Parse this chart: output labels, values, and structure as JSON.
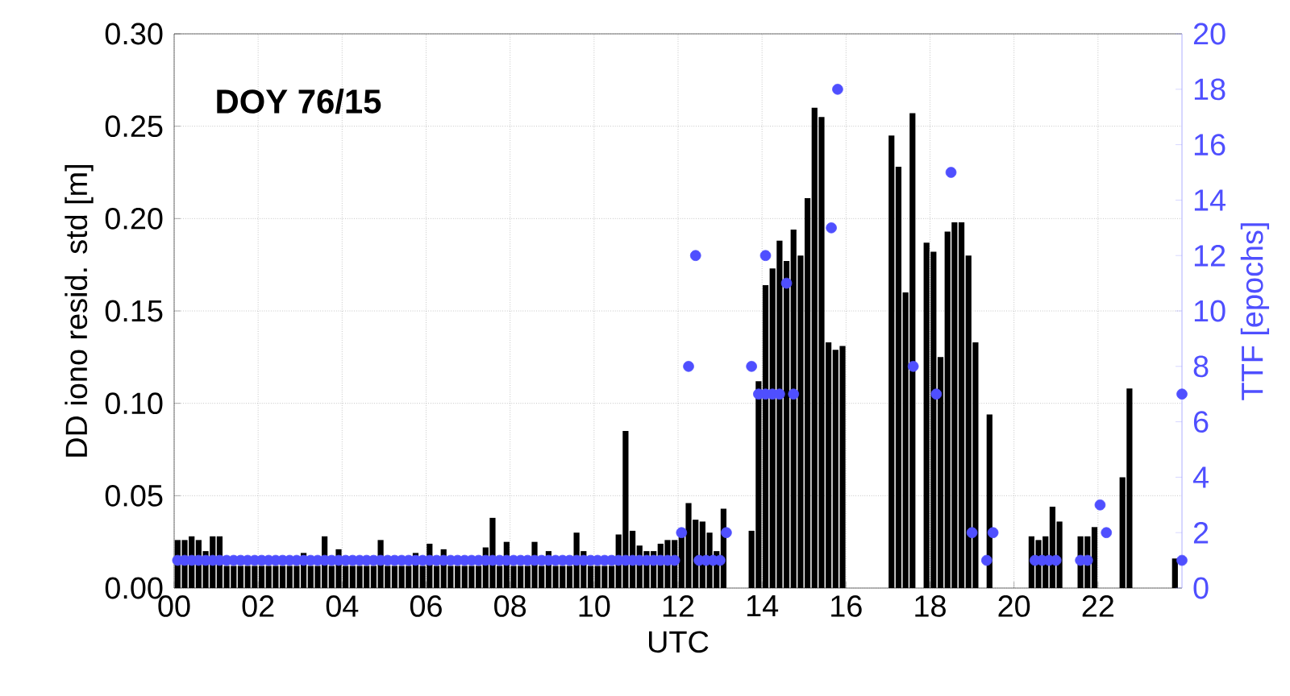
{
  "chart_data": {
    "type": "bar",
    "xlabel": "UTC",
    "ylabel": "DD iono resid. std [m]",
    "y2label": "TTF [epochs]",
    "annotations": [
      "DOY 76/15"
    ],
    "xlim": [
      0,
      24
    ],
    "xticks": [
      {
        "value": 0,
        "label": "00"
      },
      {
        "value": 2,
        "label": "02"
      },
      {
        "value": 4,
        "label": "04"
      },
      {
        "value": 6,
        "label": "06"
      },
      {
        "value": 8,
        "label": "08"
      },
      {
        "value": 10,
        "label": "10"
      },
      {
        "value": 12,
        "label": "12"
      },
      {
        "value": 14,
        "label": "14"
      },
      {
        "value": 16,
        "label": "16"
      },
      {
        "value": 18,
        "label": "18"
      },
      {
        "value": 20,
        "label": "20"
      },
      {
        "value": 22,
        "label": "22"
      }
    ],
    "ylim": [
      0,
      0.3
    ],
    "yticks": [
      {
        "value": 0,
        "label": "0.00"
      },
      {
        "value": 0.05,
        "label": "0.05"
      },
      {
        "value": 0.1,
        "label": "0.10"
      },
      {
        "value": 0.15,
        "label": "0.15"
      },
      {
        "value": 0.2,
        "label": "0.20"
      },
      {
        "value": 0.25,
        "label": "0.25"
      },
      {
        "value": 0.3,
        "label": "0.30"
      }
    ],
    "y2lim": [
      0,
      20
    ],
    "y2ticks": [
      0,
      2,
      4,
      6,
      8,
      10,
      12,
      14,
      16,
      18,
      20
    ],
    "grid": true,
    "series": [
      {
        "type": "bar",
        "color": "#000000",
        "x": [
          0.083,
          0.25,
          0.417,
          0.583,
          0.75,
          0.917,
          1.083,
          1.25,
          1.417,
          1.583,
          1.75,
          1.917,
          2.083,
          2.25,
          2.417,
          2.583,
          2.75,
          2.917,
          3.083,
          3.25,
          3.417,
          3.583,
          3.75,
          3.917,
          4.083,
          4.25,
          4.417,
          4.583,
          4.75,
          4.917,
          5.083,
          5.25,
          5.417,
          5.583,
          5.75,
          5.917,
          6.083,
          6.25,
          6.417,
          6.583,
          6.75,
          6.917,
          7.083,
          7.25,
          7.417,
          7.583,
          7.75,
          7.917,
          8.083,
          8.25,
          8.417,
          8.583,
          8.75,
          8.917,
          9.083,
          9.25,
          9.417,
          9.583,
          9.75,
          9.917,
          10.083,
          10.25,
          10.417,
          10.583,
          10.75,
          10.917,
          11.083,
          11.25,
          11.417,
          11.583,
          11.75,
          11.917,
          12.083,
          12.25,
          12.417,
          12.583,
          12.75,
          12.917,
          13.083,
          13.75,
          13.917,
          14.083,
          14.25,
          14.417,
          14.583,
          14.75,
          14.917,
          15.083,
          15.25,
          15.417,
          15.583,
          15.75,
          15.917,
          17.083,
          17.25,
          17.417,
          17.583,
          17.917,
          18.083,
          18.25,
          18.417,
          18.583,
          18.75,
          18.917,
          19.083,
          19.417,
          20.417,
          20.583,
          20.75,
          20.917,
          21.083,
          21.583,
          21.75,
          21.917,
          22.583,
          22.75,
          23.833
        ],
        "values": [
          0.026,
          0.026,
          0.028,
          0.026,
          0.02,
          0.028,
          0.028,
          0.012,
          0.012,
          0.012,
          0.012,
          0.012,
          0.012,
          0.012,
          0.012,
          0.012,
          0.012,
          0.012,
          0.019,
          0.012,
          0.012,
          0.028,
          0.012,
          0.021,
          0.012,
          0.012,
          0.012,
          0.012,
          0.012,
          0.026,
          0.012,
          0.012,
          0.012,
          0.012,
          0.019,
          0.012,
          0.024,
          0.012,
          0.021,
          0.012,
          0.012,
          0.012,
          0.012,
          0.012,
          0.022,
          0.038,
          0.012,
          0.025,
          0.012,
          0.012,
          0.012,
          0.025,
          0.012,
          0.02,
          0.012,
          0.012,
          0.012,
          0.03,
          0.02,
          0.012,
          0.012,
          0.012,
          0.012,
          0.029,
          0.085,
          0.031,
          0.023,
          0.02,
          0.02,
          0.024,
          0.026,
          0.026,
          0.029,
          0.046,
          0.037,
          0.036,
          0.03,
          0.02,
          0.043,
          0.031,
          0.112,
          0.164,
          0.173,
          0.188,
          0.177,
          0.194,
          0.18,
          0.211,
          0.26,
          0.255,
          0.133,
          0.129,
          0.131,
          0.245,
          0.228,
          0.16,
          0.257,
          0.187,
          0.182,
          0.125,
          0.193,
          0.198,
          0.198,
          0.18,
          0.133,
          0.094,
          0.028,
          0.026,
          0.028,
          0.044,
          0.036,
          0.028,
          0.028,
          0.033,
          0.06,
          0.108,
          0.016
        ]
      },
      {
        "type": "scatter",
        "axis": "y2",
        "color": "#4f4fff",
        "marker": "circle",
        "x": [
          0.083,
          0.25,
          0.417,
          0.583,
          0.75,
          0.917,
          1.083,
          1.25,
          1.417,
          1.583,
          1.75,
          1.917,
          2.083,
          2.25,
          2.417,
          2.583,
          2.75,
          2.917,
          3.083,
          3.25,
          3.417,
          3.583,
          3.75,
          3.917,
          4.083,
          4.25,
          4.417,
          4.583,
          4.75,
          4.917,
          5.083,
          5.25,
          5.417,
          5.583,
          5.75,
          5.917,
          6.083,
          6.25,
          6.417,
          6.583,
          6.75,
          6.917,
          7.083,
          7.25,
          7.417,
          7.583,
          7.75,
          7.917,
          8.083,
          8.25,
          8.417,
          8.583,
          8.75,
          8.917,
          9.083,
          9.25,
          9.417,
          9.583,
          9.75,
          9.917,
          10.083,
          10.25,
          10.417,
          10.583,
          10.75,
          10.917,
          11.083,
          11.25,
          11.417,
          11.583,
          11.75,
          11.917,
          12.083,
          12.25,
          12.417,
          12.5,
          12.667,
          12.833,
          13.0,
          13.15,
          13.75,
          13.917,
          14.083,
          14.083,
          14.25,
          14.417,
          14.583,
          14.75,
          15.65,
          15.8,
          17.6,
          18.15,
          18.5,
          19.0,
          19.35,
          19.5,
          20.5,
          20.667,
          20.833,
          21.0,
          21.583,
          21.75,
          22.05,
          22.2,
          24,
          24
        ],
        "values": [
          1,
          1,
          1,
          1,
          1,
          1,
          1,
          1,
          1,
          1,
          1,
          1,
          1,
          1,
          1,
          1,
          1,
          1,
          1,
          1,
          1,
          1,
          1,
          1,
          1,
          1,
          1,
          1,
          1,
          1,
          1,
          1,
          1,
          1,
          1,
          1,
          1,
          1,
          1,
          1,
          1,
          1,
          1,
          1,
          1,
          1,
          1,
          1,
          1,
          1,
          1,
          1,
          1,
          1,
          1,
          1,
          1,
          1,
          1,
          1,
          1,
          1,
          1,
          1,
          1,
          1,
          1,
          1,
          1,
          1,
          1,
          1,
          2,
          8,
          12,
          1,
          1,
          1,
          1,
          2,
          8,
          7,
          7,
          12,
          7,
          7,
          11,
          7,
          13,
          18,
          8,
          7,
          15,
          2,
          1,
          2,
          1,
          1,
          1,
          1,
          1,
          1,
          3,
          2,
          1,
          7
        ]
      }
    ]
  }
}
